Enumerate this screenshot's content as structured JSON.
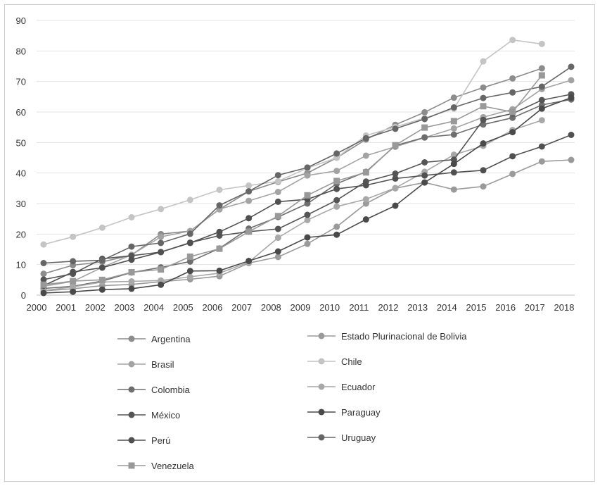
{
  "chart_data": {
    "type": "line",
    "title": "",
    "xlabel": "",
    "ylabel": "",
    "ylim": [
      0,
      90
    ],
    "y_ticks": [
      "0",
      "10",
      "20",
      "30",
      "40",
      "50",
      "60",
      "70",
      "80",
      "90"
    ],
    "x": [
      "2000",
      "2001",
      "2002",
      "2003",
      "2004",
      "2005",
      "2006",
      "2007",
      "2008",
      "2009",
      "2010",
      "2011",
      "2012",
      "2013",
      "2014",
      "2015",
      "2016",
      "2017",
      "2018"
    ],
    "grid": "horizontal",
    "legend_position": "bottom",
    "series": [
      {
        "name": "Argentina",
        "color": "#8c8c8c",
        "marker": "circle",
        "values": [
          7.0,
          9.8,
          10.9,
          13.1,
          20.0,
          21.0,
          28.1,
          34.0,
          37.1,
          40.0,
          45.0,
          51.0,
          55.8,
          59.9,
          64.7,
          68.0,
          71.0,
          74.3,
          null
        ]
      },
      {
        "name": "Estado Plurinacional de Bolivia",
        "color": "#9a9a9a",
        "marker": "circle",
        "values": [
          1.4,
          2.1,
          3.1,
          3.5,
          4.4,
          5.2,
          6.2,
          10.5,
          12.5,
          16.8,
          22.4,
          30.0,
          35.0,
          36.9,
          34.6,
          35.6,
          39.7,
          43.8,
          44.3
        ]
      },
      {
        "name": "Brasil",
        "color": "#a3a3a3",
        "marker": "circle",
        "values": [
          2.9,
          4.5,
          9.1,
          13.2,
          19.1,
          21.0,
          28.2,
          30.9,
          33.8,
          39.2,
          40.7,
          45.7,
          48.6,
          51.6,
          54.6,
          58.3,
          60.9,
          67.5,
          70.4
        ]
      },
      {
        "name": "Chile",
        "color": "#c4c4c4",
        "marker": "circle",
        "values": [
          16.6,
          19.1,
          22.1,
          25.5,
          28.2,
          31.2,
          34.5,
          35.9,
          37.3,
          41.6,
          45.0,
          52.3,
          55.1,
          58.0,
          61.1,
          76.6,
          83.6,
          82.3,
          null
        ]
      },
      {
        "name": "Colombia",
        "color": "#6e6e6e",
        "marker": "circle",
        "values": [
          2.2,
          2.9,
          4.6,
          7.4,
          9.1,
          11.0,
          15.3,
          21.8,
          25.6,
          30.0,
          36.5,
          40.4,
          49.0,
          51.7,
          52.6,
          55.9,
          58.1,
          62.3,
          64.1
        ]
      },
      {
        "name": "Ecuador",
        "color": "#a8a8a8",
        "marker": "circle",
        "values": [
          1.5,
          2.7,
          4.3,
          4.5,
          4.8,
          6.0,
          7.2,
          10.8,
          18.8,
          24.6,
          29.0,
          31.4,
          35.1,
          40.4,
          46.0,
          48.9,
          54.1,
          57.3,
          null
        ]
      },
      {
        "name": "México",
        "color": "#555555",
        "marker": "circle",
        "values": [
          5.1,
          7.0,
          11.9,
          12.9,
          14.1,
          17.2,
          19.5,
          20.8,
          21.7,
          26.3,
          31.1,
          37.2,
          39.8,
          43.5,
          44.4,
          57.4,
          59.5,
          63.9,
          65.8
        ]
      },
      {
        "name": "Paraguay",
        "color": "#4a4a4a",
        "marker": "circle",
        "values": [
          0.7,
          1.1,
          1.8,
          2.1,
          3.4,
          7.9,
          8.0,
          11.2,
          14.3,
          18.9,
          19.8,
          24.8,
          29.3,
          36.9,
          43.0,
          49.7,
          53.4,
          61.1,
          64.7
        ]
      },
      {
        "name": "Perú",
        "color": "#505050",
        "marker": "circle",
        "values": [
          3.1,
          7.6,
          9.0,
          11.6,
          14.1,
          17.1,
          20.7,
          25.2,
          30.6,
          31.4,
          34.8,
          36.0,
          38.2,
          39.2,
          40.2,
          40.9,
          45.5,
          48.7,
          52.5
        ]
      },
      {
        "name": "Uruguay",
        "color": "#666666",
        "marker": "circle",
        "values": [
          10.5,
          11.1,
          11.4,
          15.9,
          17.1,
          20.1,
          29.4,
          34.0,
          39.3,
          41.8,
          46.4,
          51.4,
          54.5,
          57.7,
          61.5,
          64.6,
          66.4,
          68.3,
          74.8
        ]
      },
      {
        "name": "Venezuela",
        "color": "#999999",
        "marker": "square",
        "values": [
          3.4,
          4.6,
          5.0,
          7.5,
          8.4,
          12.6,
          15.2,
          20.8,
          25.9,
          32.7,
          37.4,
          40.2,
          49.1,
          54.9,
          57.0,
          61.9,
          60.0,
          72.0,
          null
        ]
      }
    ]
  }
}
